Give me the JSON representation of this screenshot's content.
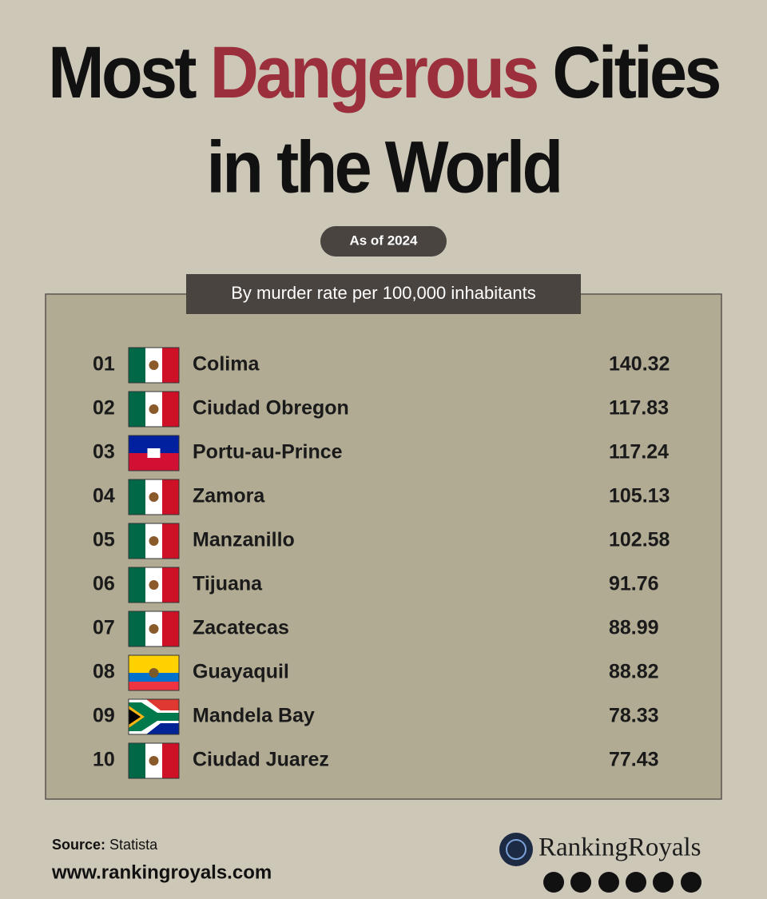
{
  "header": {
    "title_line1": [
      "Most",
      "Dangerous",
      "Cities"
    ],
    "title_line2": "in the World",
    "badge": "As of 2024"
  },
  "table": {
    "caption": "By murder rate per 100,000 inhabitants",
    "rows": [
      [
        "01",
        "Colima",
        140.32
      ],
      [
        "02",
        "Ciudad Obregon",
        117.83
      ],
      [
        "03",
        "Portu-au-Prince",
        117.24
      ],
      [
        "04",
        "Zamora",
        105.13
      ],
      [
        "05",
        "Manzanillo",
        102.58
      ],
      [
        "06",
        "Tijuana",
        91.76
      ],
      [
        "07",
        "Zacatecas",
        88.99
      ],
      [
        "08",
        "Guayaquil",
        88.82
      ],
      [
        "09",
        "Mandela Bay",
        78.33
      ],
      [
        "10",
        "Ciudad Juarez",
        77.43
      ]
    ]
  },
  "footer": {
    "source_label": "Source:",
    "source": "Statista",
    "website": "www.rankingroyals.com",
    "brand": "RankingRoyals"
  }
}
